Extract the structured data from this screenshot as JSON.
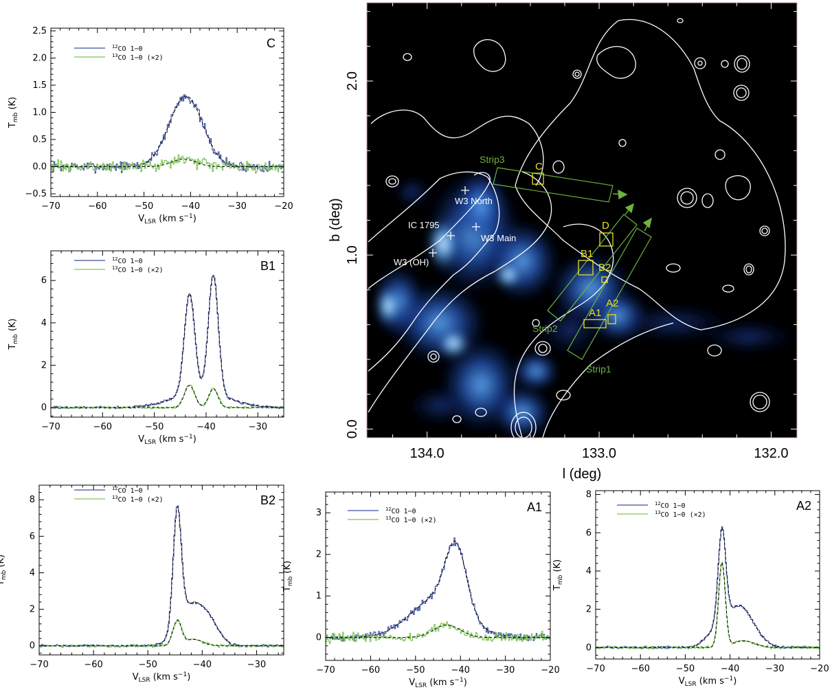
{
  "chart_data": [
    {
      "id": "C",
      "type": "line",
      "panel_label": "C",
      "xlabel_main": "V",
      "xlabel_sub": "LSR",
      "xlabel_units": "(km s",
      "ylabel_main": "T",
      "ylabel_sub": "mb",
      "ylabel_units": "(K)",
      "xlim": [
        -70,
        -20
      ],
      "ylim": [
        -0.55,
        2.55
      ],
      "xticks": [
        -70,
        -60,
        -50,
        -40,
        -30,
        -20
      ],
      "yticks": [
        -0.5,
        0.0,
        0.5,
        1.0,
        1.5,
        2.0,
        2.5
      ],
      "ytick_labels": [
        "−0.5",
        "0.0",
        "0.5",
        "1.0",
        "1.5",
        "2.0",
        "2.5"
      ],
      "series": [
        {
          "name_iso": "12",
          "name_rest": "CO 1−0",
          "color": "#3d4f9e",
          "components": [
            {
              "center": -41.0,
              "amp": 1.3,
              "sigma": 3.6
            }
          ],
          "noise": 0.14
        },
        {
          "name_iso": "13",
          "name_rest": "CO 1−0 (×2)",
          "color": "#7cc455",
          "components": [
            {
              "center": -41.5,
              "amp": 0.14,
              "sigma": 2.6
            }
          ],
          "noise": 0.15
        }
      ]
    },
    {
      "id": "B1",
      "type": "line",
      "panel_label": "B1",
      "xlabel_main": "V",
      "xlabel_sub": "LSR",
      "xlabel_units": "(km s",
      "ylabel_main": "T",
      "ylabel_sub": "mb",
      "ylabel_units": "(K)",
      "xlim": [
        -70,
        -25
      ],
      "ylim": [
        -0.45,
        7.4
      ],
      "xticks": [
        -70,
        -60,
        -50,
        -40,
        -30
      ],
      "yticks": [
        0,
        2,
        4,
        6
      ],
      "ytick_labels": [
        "0",
        "2",
        "4",
        "6"
      ],
      "series": [
        {
          "name_iso": "12",
          "name_rest": "CO 1−0",
          "color": "#3d4f9e",
          "components": [
            {
              "center": -43.2,
              "amp": 4.7,
              "sigma": 1.0
            },
            {
              "center": -38.6,
              "amp": 5.6,
              "sigma": 0.95
            },
            {
              "center": -41.0,
              "amp": 0.75,
              "sigma": 5.2
            }
          ],
          "noise": 0.09
        },
        {
          "name_iso": "13",
          "name_rest": "CO 1−0 (×2)",
          "color": "#7cc455",
          "components": [
            {
              "center": -43.2,
              "amp": 1.05,
              "sigma": 1.0
            },
            {
              "center": -38.6,
              "amp": 0.9,
              "sigma": 0.9
            }
          ],
          "noise": 0.08
        }
      ]
    },
    {
      "id": "B2",
      "type": "line",
      "panel_label": "B2",
      "xlabel_main": "V",
      "xlabel_sub": "LSR",
      "xlabel_units": "(km s",
      "ylabel_main": "T",
      "ylabel_sub": "mb",
      "ylabel_units": "(K)",
      "xlim": [
        -70,
        -25
      ],
      "ylim": [
        -0.5,
        8.8
      ],
      "xticks": [
        -70,
        -60,
        -50,
        -40,
        -30
      ],
      "yticks": [
        0,
        2,
        4,
        6,
        8
      ],
      "ytick_labels": [
        "0",
        "2",
        "4",
        "6",
        "8"
      ],
      "series": [
        {
          "name_iso": "12",
          "name_rest": "CO 1−0",
          "color": "#3d4f9e",
          "components": [
            {
              "center": -44.6,
              "amp": 6.4,
              "sigma": 0.75
            },
            {
              "center": -42.0,
              "amp": 2.2,
              "sigma": 2.4
            },
            {
              "center": -38.5,
              "amp": 0.9,
              "sigma": 1.8
            }
          ],
          "noise": 0.11
        },
        {
          "name_iso": "13",
          "name_rest": "CO 1−0 (×2)",
          "color": "#7cc455",
          "components": [
            {
              "center": -44.6,
              "amp": 1.35,
              "sigma": 0.8
            },
            {
              "center": -41.5,
              "amp": 0.35,
              "sigma": 1.6
            }
          ],
          "noise": 0.11
        }
      ]
    },
    {
      "id": "A1",
      "type": "line",
      "panel_label": "A1",
      "xlabel_main": "V",
      "xlabel_sub": "LSR",
      "xlabel_units": "(km s",
      "ylabel_main": "T",
      "ylabel_sub": "mb",
      "ylabel_units": "(K)",
      "xlim": [
        -70,
        -20
      ],
      "ylim": [
        -0.55,
        3.5
      ],
      "xticks": [
        -70,
        -60,
        -50,
        -40,
        -30,
        -20
      ],
      "yticks": [
        0,
        1,
        2,
        3
      ],
      "ytick_labels": [
        "0",
        "1",
        "2",
        "3"
      ],
      "series": [
        {
          "name_iso": "12",
          "name_rest": "CO 1−0",
          "color": "#3d4f9e",
          "components": [
            {
              "center": -41.0,
              "amp": 1.55,
              "sigma": 2.3
            },
            {
              "center": -45.0,
              "amp": 0.95,
              "sigma": 6.0
            }
          ],
          "noise": 0.13
        },
        {
          "name_iso": "13",
          "name_rest": "CO 1−0 (×2)",
          "color": "#7cc455",
          "components": [
            {
              "center": -43.0,
              "amp": 0.3,
              "sigma": 3.0
            }
          ],
          "noise": 0.16
        }
      ]
    },
    {
      "id": "A2",
      "type": "line",
      "panel_label": "A2",
      "xlabel_main": "V",
      "xlabel_sub": "LSR",
      "xlabel_units": "(km s",
      "ylabel_main": "T",
      "ylabel_sub": "mb",
      "ylabel_units": "(K)",
      "xlim": [
        -70,
        -20
      ],
      "ylim": [
        -0.6,
        8.2
      ],
      "xticks": [
        -70,
        -60,
        -50,
        -40,
        -30,
        -20
      ],
      "yticks": [
        0,
        2,
        4,
        6,
        8
      ],
      "ytick_labels": [
        "0",
        "2",
        "4",
        "6",
        "8"
      ],
      "series": [
        {
          "name_iso": "12",
          "name_rest": "CO 1−0",
          "color": "#3d4f9e",
          "components": [
            {
              "center": -41.8,
              "amp": 4.9,
              "sigma": 0.85
            },
            {
              "center": -38.0,
              "amp": 2.2,
              "sigma": 3.2
            },
            {
              "center": -44.0,
              "amp": 0.5,
              "sigma": 2.0
            }
          ],
          "noise": 0.1
        },
        {
          "name_iso": "13",
          "name_rest": "CO 1−0 (×2)",
          "color": "#7cc455",
          "components": [
            {
              "center": -41.8,
              "amp": 4.4,
              "sigma": 0.75
            },
            {
              "center": -37.0,
              "amp": 0.35,
              "sigma": 2.5
            }
          ],
          "noise": 0.1
        }
      ]
    },
    {
      "id": "map",
      "type": "heatmap",
      "xlabel": "l (deg)",
      "ylabel": "b (deg)",
      "xlim": [
        134.35,
        131.85
      ],
      "ylim": [
        -0.05,
        2.45
      ],
      "xticks": [
        134.0,
        133.0,
        132.0
      ],
      "xtick_labels": [
        "134.0",
        "133.0",
        "132.0"
      ],
      "yticks": [
        0.0,
        1.0,
        2.0
      ],
      "ytick_labels": [
        "0.0",
        "1.0",
        "2.0"
      ],
      "sources": [
        {
          "name": "W3 North",
          "l": 133.77,
          "b": 1.42
        },
        {
          "name": "W3 Main",
          "l": 133.72,
          "b": 1.22
        },
        {
          "name": "W3 (OH)",
          "l": 133.95,
          "b": 1.07
        },
        {
          "name": "IC 1795",
          "l": 133.87,
          "b": 1.17
        }
      ],
      "regions": [
        {
          "name": "C",
          "l": 133.3,
          "b": 1.45
        },
        {
          "name": "D",
          "l": 132.95,
          "b": 1.13
        },
        {
          "name": "B1",
          "l": 133.07,
          "b": 0.99
        },
        {
          "name": "B2",
          "l": 132.98,
          "b": 0.9
        },
        {
          "name": "A1",
          "l": 133.05,
          "b": 0.66
        },
        {
          "name": "A2",
          "l": 132.9,
          "b": 0.68
        }
      ],
      "strips": [
        {
          "name": "Strip3"
        },
        {
          "name": "Strip2"
        },
        {
          "name": "Strip1"
        }
      ],
      "colors": {
        "strip": "#6db33f",
        "region": "#e8e020",
        "contour": "#ffffff",
        "source": "#ffffff"
      }
    }
  ]
}
